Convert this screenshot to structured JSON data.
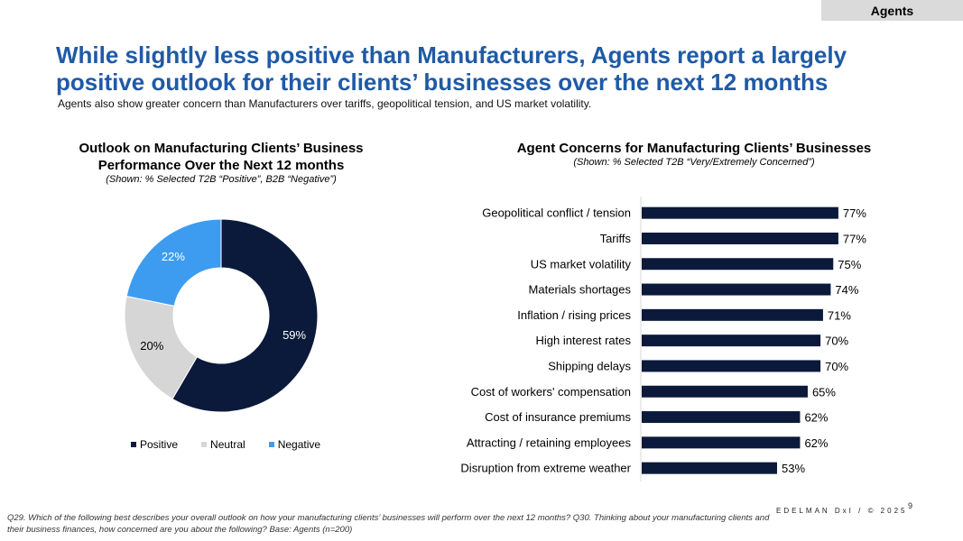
{
  "tag": "Agents",
  "title": "While slightly less positive than Manufacturers, Agents report a largely positive outlook for their clients’ businesses over the next 12 months",
  "subtitle": "Agents also show greater concern than Manufacturers over tariffs, geopolitical tension, and US market volatility.",
  "colors": {
    "positive": "#0b1a3b",
    "neutral": "#d6d6d6",
    "negative": "#3d9cf0",
    "bar": "#0b1a3b",
    "title": "#1f5aa6"
  },
  "chart_data": [
    {
      "type": "pie",
      "title": "Outlook on Manufacturing Clients’ Business Performance Over the Next 12 months",
      "subtitle": "(Shown: % Selected T2B “Positive”, B2B “Negative”)",
      "categories": [
        "Positive",
        "Neutral",
        "Negative"
      ],
      "values": [
        59,
        20,
        22
      ],
      "labels": [
        "59%",
        "20%",
        "22%"
      ],
      "legend": "bottom"
    },
    {
      "type": "bar",
      "orientation": "horizontal",
      "title": "Agent Concerns for Manufacturing Clients’ Businesses",
      "subtitle": "(Shown: % Selected T2B “Very/Extremely Concerned”)",
      "categories": [
        "Geopolitical conflict / tension",
        "Tariffs",
        "US market volatility",
        "Materials shortages",
        "Inflation / rising prices",
        "High interest rates",
        "Shipping delays",
        "Cost of workers' compensation",
        "Cost of insurance premiums",
        "Attracting / retaining employees",
        "Disruption from extreme weather"
      ],
      "values": [
        77,
        77,
        75,
        74,
        71,
        70,
        70,
        65,
        62,
        62,
        53
      ],
      "labels": [
        "77%",
        "77%",
        "75%",
        "74%",
        "71%",
        "70%",
        "70%",
        "65%",
        "62%",
        "62%",
        "53%"
      ],
      "xlim": [
        0,
        100
      ]
    }
  ],
  "footer": {
    "note": "Q29. Which of the following best describes your overall outlook on how your manufacturing clients’ businesses will perform over the next 12 months? Q30. Thinking about your manufacturing clients and their business finances, how concerned are you about the following? Base: Agents (n=200)",
    "brand": "EDELMAN DxI / © 2025",
    "page": "9"
  }
}
